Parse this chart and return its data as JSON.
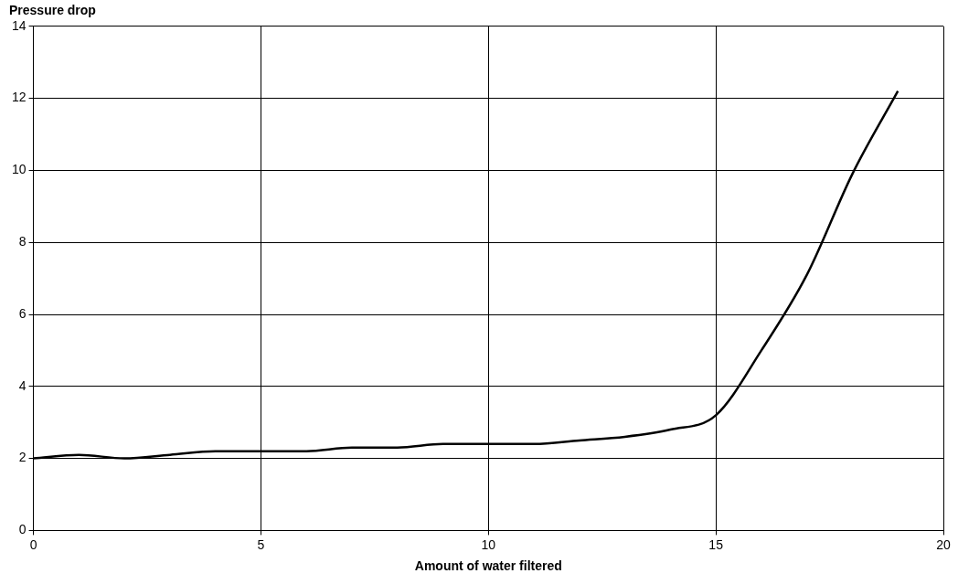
{
  "chart_data": {
    "type": "line",
    "xlabel": "Amount of water filtered",
    "ylabel": "Pressure drop",
    "x": [
      0,
      1,
      2,
      3,
      4,
      5,
      6,
      7,
      8,
      9,
      10,
      11,
      12,
      13,
      14,
      15,
      16,
      17,
      18,
      19
    ],
    "series": [
      {
        "color": "#000000",
        "values": [
          2.0,
          2.1,
          2.0,
          2.1,
          2.2,
          2.2,
          2.2,
          2.3,
          2.3,
          2.4,
          2.4,
          2.4,
          2.5,
          2.6,
          2.8,
          3.2,
          5.0,
          7.1,
          9.9,
          12.2
        ]
      }
    ],
    "xlim": [
      0,
      20
    ],
    "xticks": [
      0,
      5,
      10,
      15,
      20
    ],
    "ylim": [
      0,
      14
    ],
    "yticks": [
      0,
      2,
      4,
      6,
      8,
      10,
      12,
      14
    ],
    "grid": true,
    "legend": false,
    "marker": "none",
    "line_style": "solid"
  }
}
